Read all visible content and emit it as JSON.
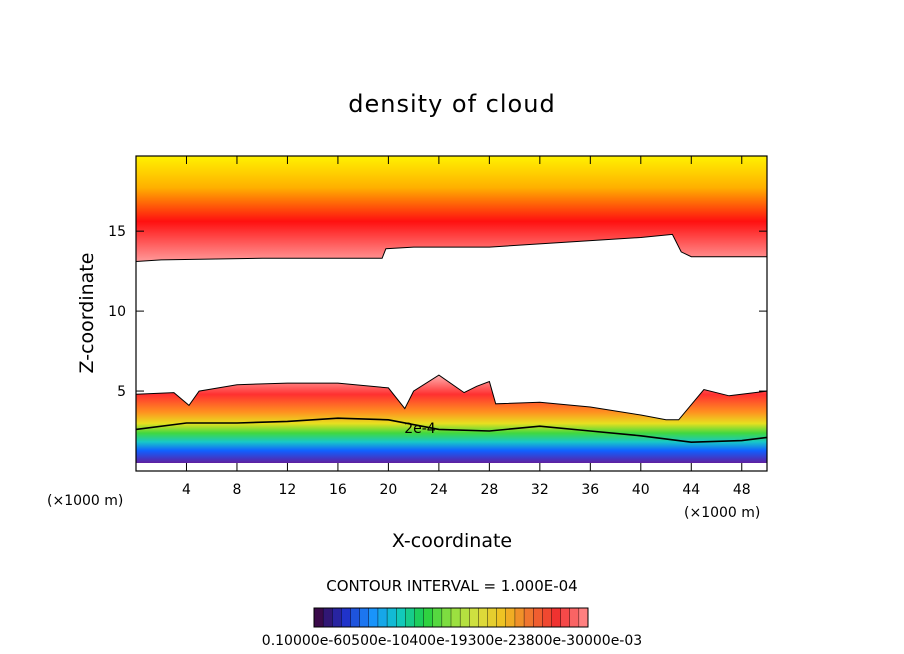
{
  "chart_data": {
    "type": "heatmap",
    "title": "density of cloud",
    "xlabel": "X-coordinate",
    "ylabel": "Z-coordinate",
    "x_unit_left": "(×1000 m)",
    "x_unit_right": "(×1000 m)",
    "xlim": [
      0,
      50
    ],
    "ylim": [
      0,
      19.7
    ],
    "x_ticks": [
      4,
      8,
      12,
      16,
      20,
      24,
      28,
      32,
      36,
      40,
      44,
      48
    ],
    "y_ticks": [
      5,
      10,
      15
    ],
    "contour_interval_text": "CONTOUR INTERVAL = 1.000E-04",
    "contour_label": "2e-4",
    "colorbar_labels_text": "0.10000e-60500e-10400e-19300e-23800e-30000e-03",
    "colorbar_range": [
      0.0001,
      0.003
    ],
    "upper_layer": {
      "top_z": 19.7,
      "core_z": 15.5,
      "core_value": 0.0027,
      "base_profile": [
        [
          0,
          13.1
        ],
        [
          2,
          13.2
        ],
        [
          10,
          13.3
        ],
        [
          19.5,
          13.3
        ],
        [
          19.8,
          13.9
        ],
        [
          22,
          14.0
        ],
        [
          28,
          14.0
        ],
        [
          34,
          14.3
        ],
        [
          40,
          14.6
        ],
        [
          42.5,
          14.8
        ],
        [
          43.2,
          13.7
        ],
        [
          44,
          13.4
        ],
        [
          50,
          13.4
        ]
      ]
    },
    "lower_layer": {
      "bottom_z": 0.5,
      "top_profile": [
        [
          0,
          4.8
        ],
        [
          3,
          4.9
        ],
        [
          4.2,
          4.1
        ],
        [
          5,
          5.0
        ],
        [
          8,
          5.4
        ],
        [
          12,
          5.5
        ],
        [
          16,
          5.5
        ],
        [
          20,
          5.2
        ],
        [
          21.3,
          3.9
        ],
        [
          22,
          5.0
        ],
        [
          24,
          6.0
        ],
        [
          26,
          4.9
        ],
        [
          27,
          5.3
        ],
        [
          28,
          5.6
        ],
        [
          28.5,
          4.2
        ],
        [
          32,
          4.3
        ],
        [
          36,
          4.0
        ],
        [
          40,
          3.5
        ],
        [
          42,
          3.2
        ],
        [
          43,
          3.2
        ],
        [
          45,
          5.1
        ],
        [
          47,
          4.7
        ],
        [
          50,
          5.0
        ]
      ],
      "contour_2e4_profile": [
        [
          0,
          2.6
        ],
        [
          4,
          3.0
        ],
        [
          8,
          3.0
        ],
        [
          12,
          3.1
        ],
        [
          16,
          3.3
        ],
        [
          20,
          3.2
        ],
        [
          24,
          2.6
        ],
        [
          28,
          2.5
        ],
        [
          32,
          2.8
        ],
        [
          36,
          2.5
        ],
        [
          40,
          2.2
        ],
        [
          44,
          1.8
        ],
        [
          48,
          1.9
        ],
        [
          50,
          2.1
        ]
      ]
    },
    "colorbar_stops": [
      "#3a0a4a",
      "#2030c8",
      "#1a90ff",
      "#10c8c8",
      "#20d040",
      "#90e040",
      "#d8e040",
      "#f0c020",
      "#f07030",
      "#f03030",
      "#ff8080"
    ],
    "colors": {
      "upper_top": "#fff200",
      "upper_mid": "#ffb000",
      "upper_core": "#ff1010",
      "upper_base": "#ff9a9a",
      "lower_top": "#ffb0b0",
      "lower_red": "#ff3030",
      "lower_orange": "#ff9020",
      "lower_yellow": "#e8e020",
      "lower_green": "#40d840",
      "lower_cyan": "#18c8c8",
      "lower_blue": "#1060ff",
      "lower_purple": "#6020a0"
    }
  }
}
